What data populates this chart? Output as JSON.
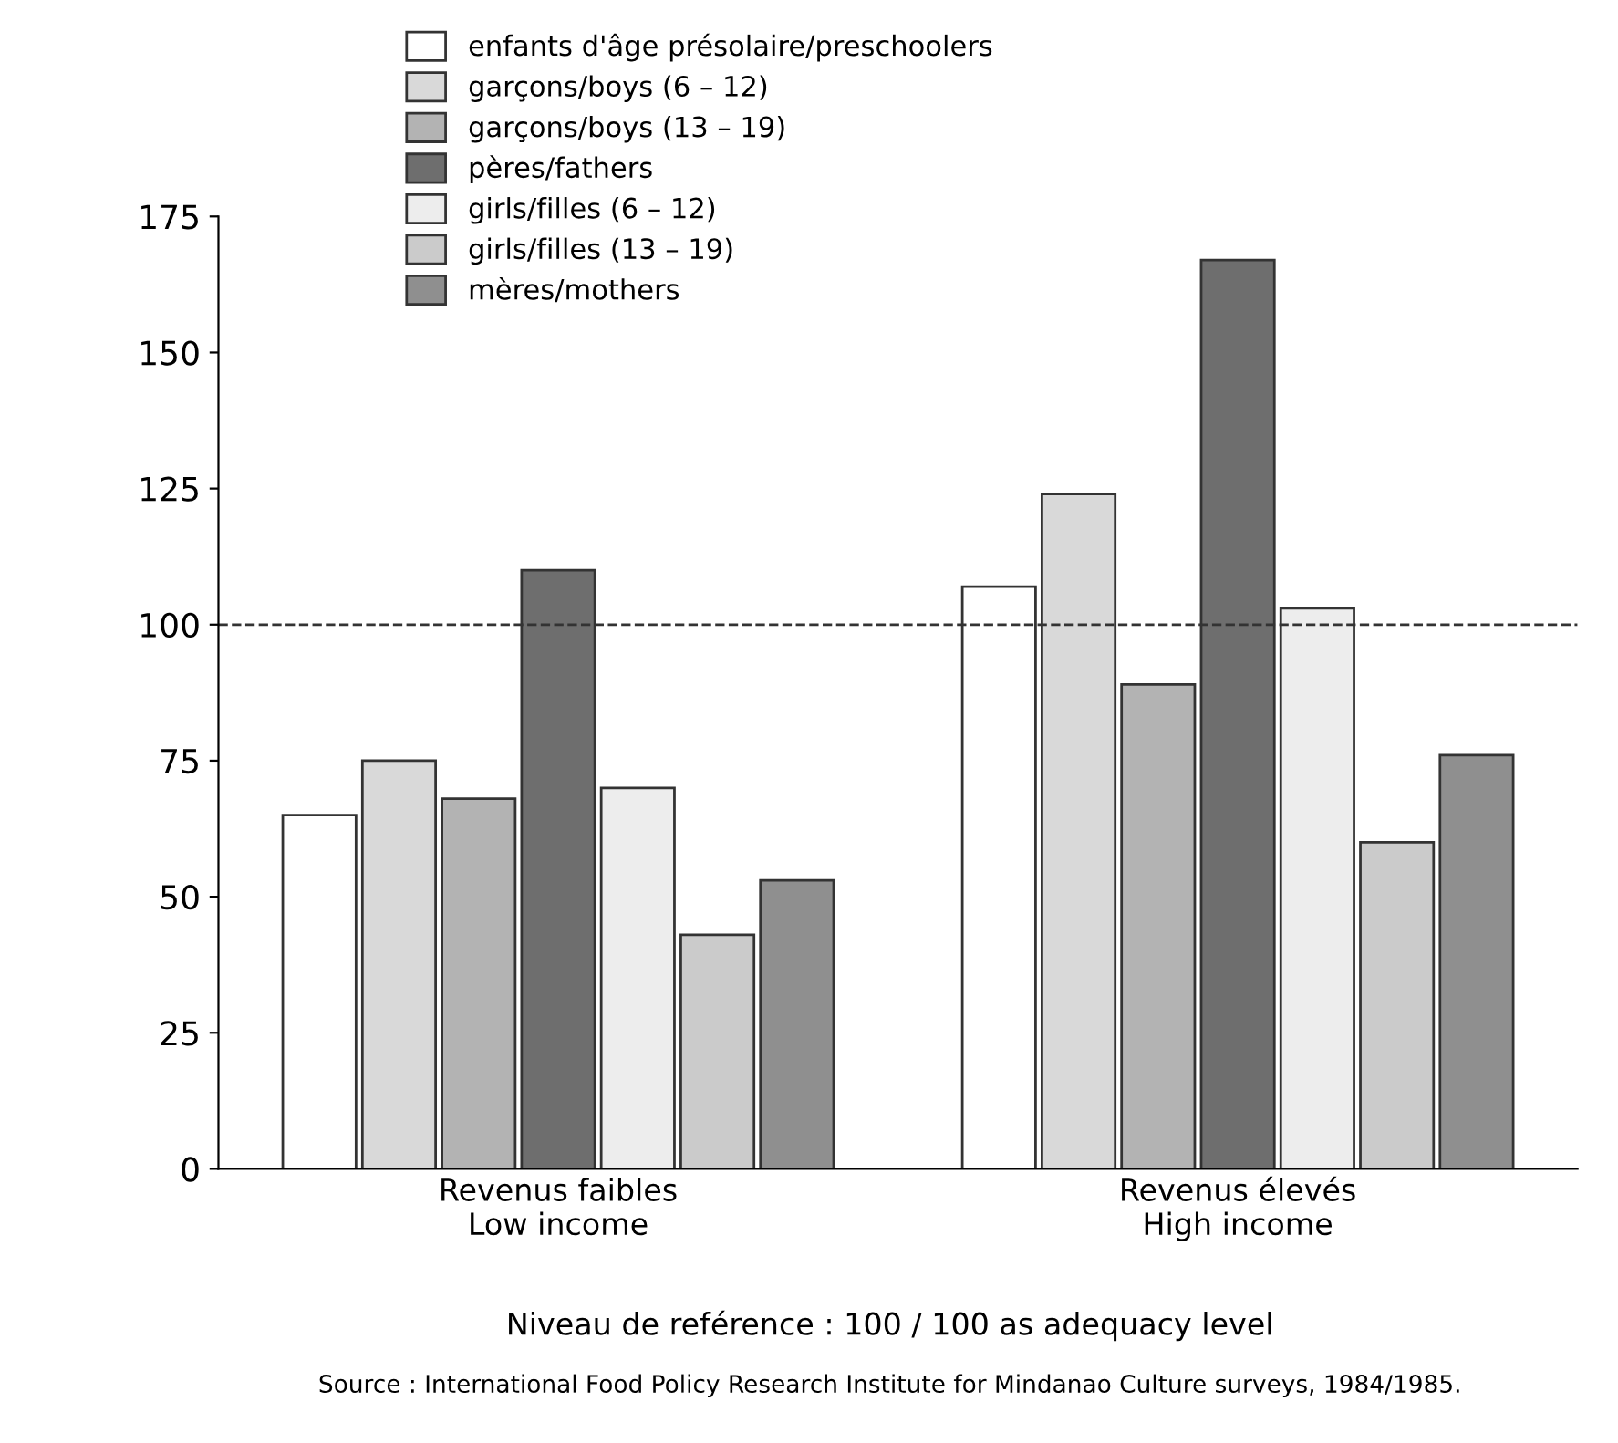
{
  "chart_data": {
    "type": "bar",
    "categories": [
      "Revenus faibles\nLow income",
      "Revenus élevés\nHigh income"
    ],
    "series": [
      {
        "name": "enfants d'âge présolaire/preschoolers",
        "color": "#ffffff",
        "values": [
          65,
          107
        ]
      },
      {
        "name": "garçons/boys (6 – 12)",
        "color": "#d9d9d9",
        "values": [
          75,
          124
        ]
      },
      {
        "name": "garçons/boys (13 – 19)",
        "color": "#b3b3b3",
        "values": [
          68,
          89
        ]
      },
      {
        "name": "pères/fathers",
        "color": "#6e6e6e",
        "values": [
          110,
          167
        ]
      },
      {
        "name": "girls/filles (6 – 12)",
        "color": "#ededed",
        "values": [
          70,
          103
        ]
      },
      {
        "name": "girls/filles (13 – 19)",
        "color": "#cbcbcb",
        "values": [
          43,
          60
        ]
      },
      {
        "name": "mères/mothers",
        "color": "#8f8f8f",
        "values": [
          53,
          76
        ]
      }
    ],
    "ylim": [
      0,
      175
    ],
    "yticks": [
      0,
      25,
      50,
      75,
      100,
      125,
      150,
      175
    ],
    "ref_lines": [
      {
        "axis": "y",
        "value": 100,
        "line_style": "dashed",
        "color": "#333333"
      }
    ],
    "legend": "top left",
    "grid": false,
    "annotations": [
      "Niveau de reférence : 100 / 100 as adequacy level",
      "Source : International Food Policy Research Institute for Mindanao Culture surveys, 1984/1985."
    ]
  }
}
